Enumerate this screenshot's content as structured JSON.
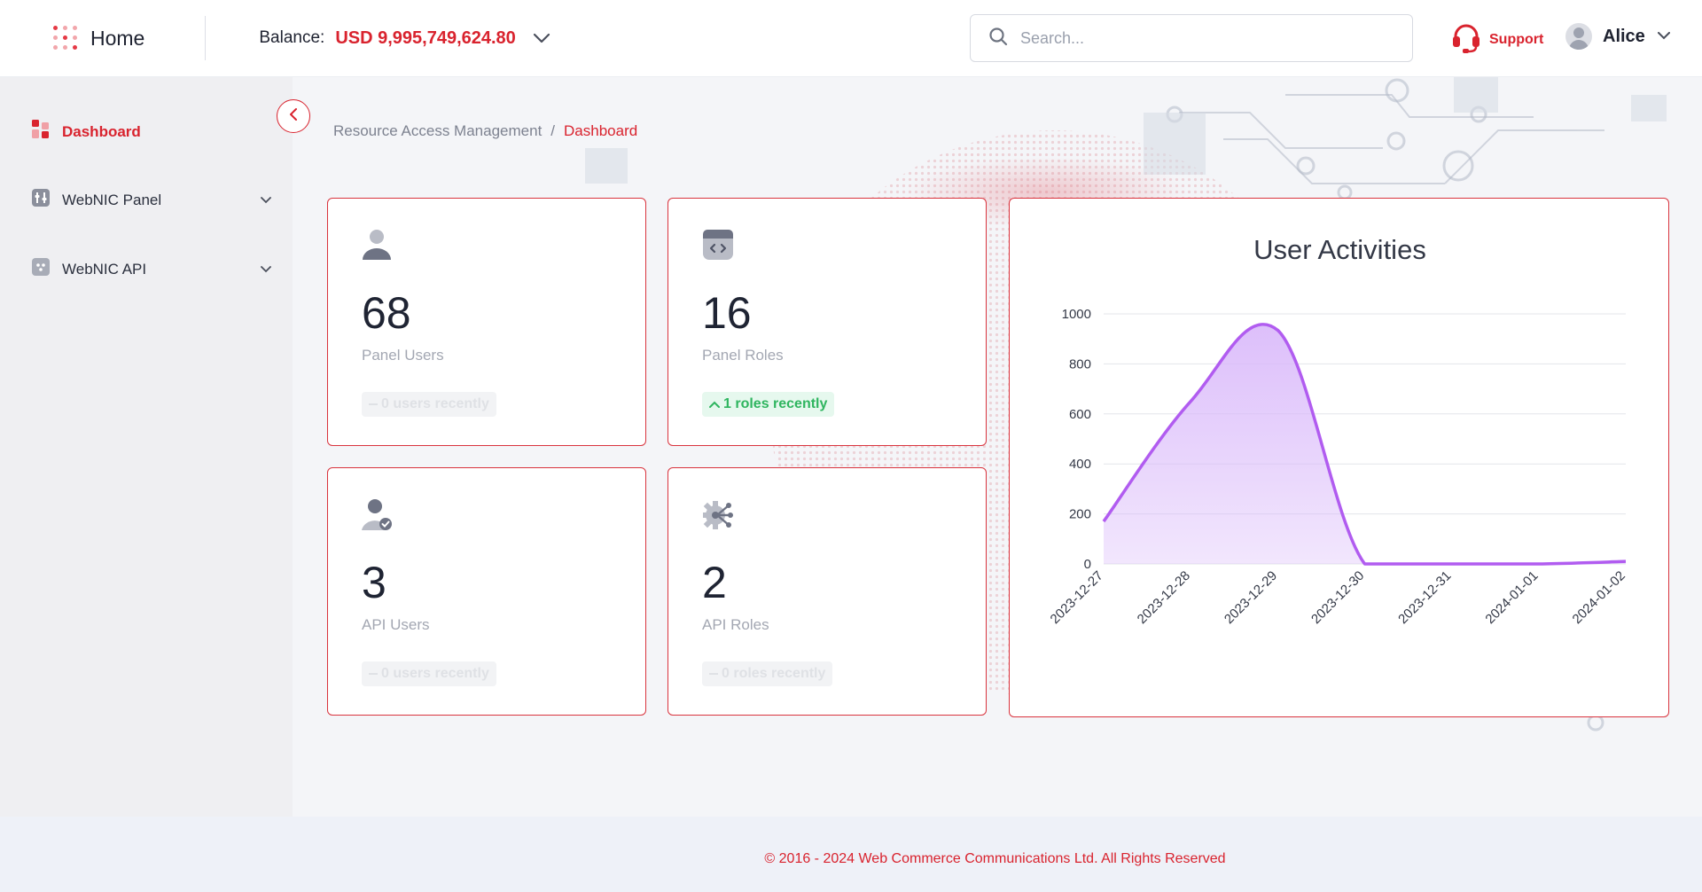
{
  "header": {
    "home_label": "Home",
    "balance_label": "Balance:",
    "balance_value": "USD 9,995,749,624.80",
    "search_placeholder": "Search...",
    "support_label": "Support",
    "user_name": "Alice"
  },
  "sidebar": {
    "items": [
      {
        "label": "Dashboard",
        "icon": "dashboard-icon",
        "active": true
      },
      {
        "label": "WebNIC Panel",
        "icon": "panel-icon",
        "expandable": true
      },
      {
        "label": "WebNIC API",
        "icon": "api-icon",
        "expandable": true
      }
    ]
  },
  "breadcrumb": {
    "parent": "Resource Access Management",
    "separator": "/",
    "current": "Dashboard"
  },
  "cards": [
    {
      "value": "68",
      "label": "Panel Users",
      "badge": "0 users recently",
      "trend": "neutral",
      "icon": "user-icon"
    },
    {
      "value": "16",
      "label": "Panel Roles",
      "badge": "1 roles recently",
      "trend": "up",
      "icon": "code-window-icon"
    },
    {
      "value": "3",
      "label": "API Users",
      "badge": "0 users recently",
      "trend": "neutral",
      "icon": "user-check-icon"
    },
    {
      "value": "2",
      "label": "API Roles",
      "badge": "0 roles recently",
      "trend": "neutral",
      "icon": "gear-share-icon"
    }
  ],
  "chart_data": {
    "type": "area",
    "title": "User Activities",
    "xlabel": "",
    "ylabel": "",
    "x": [
      "2023-12-27",
      "2023-12-28",
      "2023-12-29",
      "2023-12-30",
      "2023-12-31",
      "2024-01-01",
      "2024-01-02"
    ],
    "values": [
      170,
      650,
      935,
      0,
      0,
      0,
      10
    ],
    "ylim": [
      0,
      1000
    ],
    "yticks": [
      0,
      200,
      400,
      600,
      800,
      1000
    ],
    "grid": true,
    "series_color": "#b15cf0",
    "fill_color": "#d9b8fa"
  },
  "footer": {
    "text": "© 2016 - 2024 Web Commerce Communications Ltd. All Rights Reserved"
  },
  "colors": {
    "accent": "#d9232e",
    "positive": "#2fb55f"
  }
}
